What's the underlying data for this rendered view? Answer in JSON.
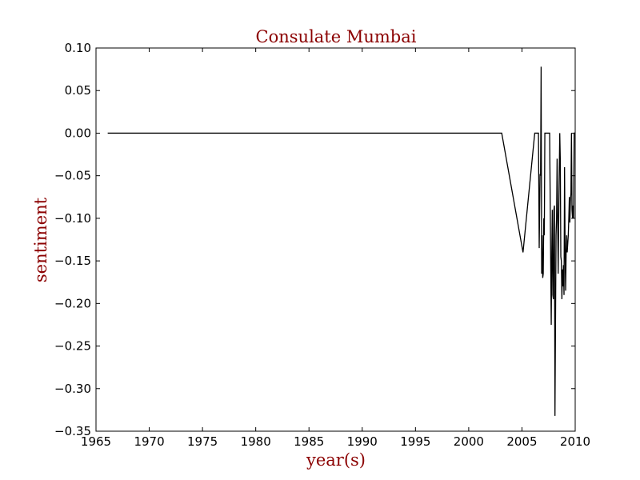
{
  "colors": {
    "title": "#8b0000",
    "axis_labels": "#8b0000",
    "line": "#000000",
    "frame": "#000000",
    "background": "#ffffff"
  },
  "chart_data": {
    "type": "line",
    "title": "Consulate Mumbai",
    "xlabel": "year(s)",
    "ylabel": "sentiment",
    "xlim": [
      1965,
      2010
    ],
    "ylim": [
      -0.35,
      0.1
    ],
    "xticks": [
      "1965",
      "1970",
      "1975",
      "1980",
      "1985",
      "1990",
      "1995",
      "2000",
      "2005",
      "2010"
    ],
    "yticks": [
      "0.10",
      "0.05",
      "0.00",
      "−0.05",
      "−0.10",
      "−0.15",
      "−0.20",
      "−0.25",
      "−0.30",
      "−0.35"
    ],
    "grid": false,
    "series": [
      {
        "x": [
          1966.1,
          2003.1,
          2005.1,
          2006.2,
          2006.55,
          2006.62,
          2006.7,
          2006.75,
          2006.8,
          2006.85,
          2006.9,
          2006.95,
          2007.0,
          2007.05,
          2007.1,
          2007.15,
          2007.3,
          2007.35,
          2007.5,
          2007.6,
          2007.75,
          2007.8,
          2007.85,
          2007.9,
          2007.95,
          2008.0,
          2008.05,
          2008.1,
          2008.2,
          2008.25,
          2008.3,
          2008.4,
          2008.5,
          2008.55,
          2008.6,
          2008.65,
          2008.7,
          2008.75,
          2008.8,
          2008.85,
          2008.9,
          2008.95,
          2009.0,
          2009.05,
          2009.1,
          2009.15,
          2009.2,
          2009.25,
          2009.3,
          2009.35,
          2009.4,
          2009.45,
          2009.5,
          2009.55,
          2009.6,
          2009.65,
          2009.7,
          2009.75,
          2009.8,
          2009.85,
          2009.9,
          2010.0
        ],
        "y": [
          0.0,
          0.0,
          -0.14,
          0.0,
          0.0,
          -0.135,
          -0.048,
          -0.05,
          0.078,
          -0.165,
          -0.12,
          -0.17,
          -0.165,
          -0.1,
          -0.12,
          0.0,
          0.0,
          0.0,
          0.0,
          0.0,
          -0.225,
          -0.14,
          -0.09,
          -0.19,
          -0.195,
          -0.09,
          -0.085,
          -0.332,
          -0.12,
          -0.1,
          -0.03,
          -0.165,
          -0.05,
          0.0,
          -0.03,
          -0.145,
          -0.15,
          -0.195,
          -0.16,
          -0.18,
          -0.155,
          -0.19,
          -0.04,
          -0.13,
          -0.185,
          -0.14,
          -0.12,
          -0.14,
          -0.13,
          -0.12,
          -0.1,
          -0.075,
          -0.105,
          -0.08,
          -0.07,
          0.0,
          -0.09,
          -0.1,
          -0.085,
          -0.1,
          0.0,
          0.0
        ]
      }
    ]
  }
}
